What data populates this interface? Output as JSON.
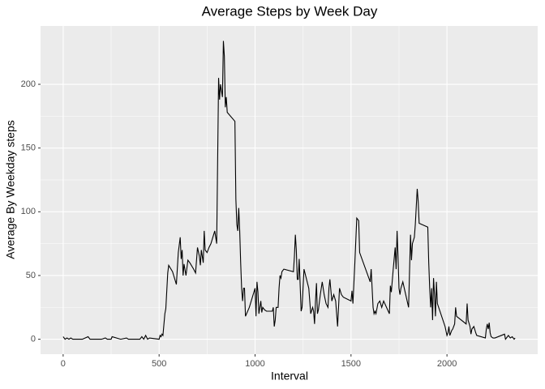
{
  "chart_data": {
    "type": "line",
    "title": "Average Steps by Week Day",
    "x_label": "Interval",
    "y_label": "Average By Weekday steps",
    "color": "#000000",
    "grid": true,
    "xlim": [
      -117.75,
      2472.75
    ],
    "xticks": [
      0,
      500,
      1000,
      1500,
      2000
    ],
    "ylim": [
      -11.7,
      245.8
    ],
    "yticks": [
      0,
      50,
      100,
      150,
      200
    ],
    "x": [
      0,
      10,
      20,
      30,
      40,
      50,
      100,
      130,
      140,
      200,
      220,
      230,
      250,
      255,
      300,
      330,
      340,
      400,
      410,
      420,
      430,
      440,
      450,
      500,
      505,
      510,
      515,
      520,
      530,
      535,
      545,
      550,
      570,
      590,
      600,
      610,
      615,
      620,
      625,
      630,
      640,
      650,
      660,
      680,
      690,
      700,
      710,
      715,
      720,
      730,
      735,
      740,
      750,
      760,
      770,
      790,
      800,
      810,
      815,
      820,
      830,
      835,
      840,
      845,
      850,
      855,
      895,
      900,
      905,
      910,
      915,
      920,
      925,
      930,
      935,
      940,
      945,
      950,
      970,
      990,
      1000,
      1005,
      1010,
      1015,
      1020,
      1025,
      1030,
      1035,
      1040,
      1050,
      1060,
      1080,
      1090,
      1095,
      1100,
      1105,
      1110,
      1120,
      1125,
      1130,
      1135,
      1140,
      1150,
      1200,
      1205,
      1210,
      1215,
      1220,
      1225,
      1230,
      1240,
      1245,
      1255,
      1280,
      1290,
      1300,
      1305,
      1310,
      1315,
      1320,
      1325,
      1330,
      1340,
      1350,
      1360,
      1370,
      1380,
      1385,
      1390,
      1400,
      1410,
      1420,
      1430,
      1440,
      1450,
      1460,
      1500,
      1505,
      1510,
      1520,
      1530,
      1540,
      1545,
      1600,
      1605,
      1615,
      1620,
      1625,
      1630,
      1640,
      1650,
      1660,
      1670,
      1700,
      1705,
      1710,
      1720,
      1730,
      1735,
      1740,
      1745,
      1750,
      1755,
      1760,
      1770,
      1800,
      1810,
      1815,
      1820,
      1830,
      1835,
      1845,
      1850,
      1855,
      1900,
      1905,
      1910,
      1915,
      1920,
      1925,
      1930,
      1935,
      1940,
      1945,
      1950,
      1990,
      2000,
      2005,
      2010,
      2015,
      2020,
      2025,
      2030,
      2040,
      2045,
      2050,
      2100,
      2105,
      2110,
      2120,
      2125,
      2130,
      2140,
      2150,
      2155,
      2200,
      2205,
      2210,
      2215,
      2220,
      2225,
      2230,
      2240,
      2250,
      2300,
      2305,
      2320,
      2330,
      2340,
      2350,
      2355
    ],
    "values": [
      2,
      0,
      1,
      0,
      1,
      0,
      0,
      2,
      0,
      0,
      1,
      0,
      0,
      2,
      0,
      1,
      0,
      0,
      2,
      0,
      3,
      0,
      1,
      0,
      3,
      2,
      4,
      3,
      20,
      24,
      52,
      58,
      53,
      43,
      68,
      80,
      63,
      70,
      50,
      59,
      50,
      62,
      60,
      55,
      52,
      72,
      65,
      58,
      70,
      60,
      85,
      70,
      68,
      72,
      75,
      85,
      75,
      205,
      188,
      200,
      190,
      234,
      222,
      182,
      190,
      178,
      171,
      110,
      90,
      85,
      103,
      85,
      60,
      40,
      30,
      40,
      40,
      18,
      25,
      35,
      40,
      18,
      45,
      37,
      20,
      25,
      30,
      21,
      25,
      23,
      22,
      22,
      22,
      25,
      10,
      15,
      25,
      25,
      40,
      50,
      48,
      53,
      55,
      53,
      65,
      82,
      70,
      47,
      47,
      63,
      22,
      25,
      55,
      40,
      20,
      25,
      22,
      12,
      30,
      44,
      20,
      23,
      35,
      45,
      35,
      28,
      25,
      40,
      47,
      30,
      35,
      30,
      10,
      40,
      35,
      33,
      30,
      38,
      28,
      60,
      95,
      93,
      68,
      45,
      55,
      25,
      20,
      22,
      20,
      28,
      30,
      25,
      30,
      20,
      42,
      37,
      55,
      72,
      55,
      85,
      65,
      40,
      35,
      40,
      45,
      25,
      82,
      62,
      75,
      80,
      90,
      118,
      108,
      91,
      88,
      60,
      40,
      25,
      40,
      15,
      48,
      35,
      18,
      45,
      28,
      10,
      3,
      5,
      10,
      3,
      5,
      7,
      8,
      12,
      25,
      18,
      12,
      28,
      15,
      10,
      4,
      8,
      10,
      5,
      3,
      1,
      8,
      12,
      8,
      13,
      5,
      2,
      1,
      1,
      4,
      0,
      3,
      1,
      2,
      0,
      1
    ]
  }
}
